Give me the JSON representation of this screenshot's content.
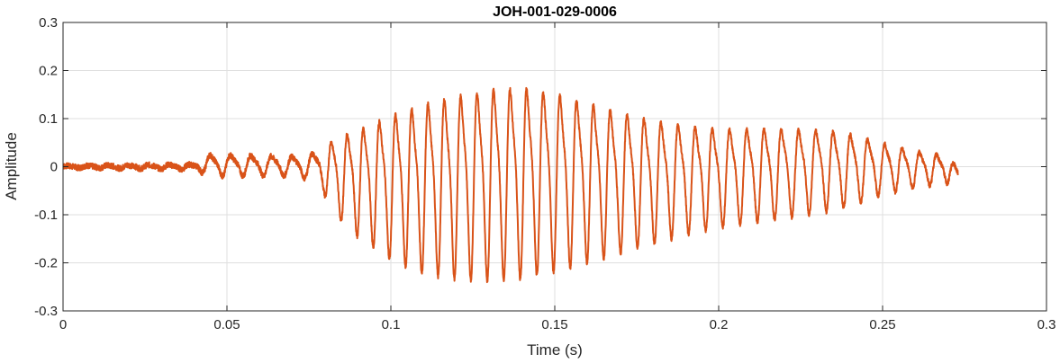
{
  "chart_data": {
    "type": "line",
    "title": "JOH-001-029-0006",
    "xlabel": "Time (s)",
    "ylabel": "Amplitude",
    "xlim": [
      0,
      0.3
    ],
    "ylim": [
      -0.3,
      0.3
    ],
    "grid": true,
    "legend": "none",
    "x_ticks": [
      0,
      0.05,
      0.1,
      0.15,
      0.2,
      0.25,
      0.3
    ],
    "x_tick_labels": [
      "0",
      "0.05",
      "0.1",
      "0.15",
      "0.2",
      "0.25",
      "0.3"
    ],
    "y_ticks": [
      -0.3,
      -0.2,
      -0.1,
      0,
      0.1,
      0.2,
      0.3
    ],
    "y_tick_labels": [
      "-0.3",
      "-0.2",
      "-0.1",
      "0",
      "0.1",
      "0.2",
      "0.3"
    ],
    "series": [
      {
        "color": "#d95319",
        "x": [
          0,
          0.04,
          0.045,
          0.07,
          0.078,
          0.081,
          0.082,
          0.085,
          0.09,
          0.1,
          0.11,
          0.12,
          0.13,
          0.14,
          0.15,
          0.16,
          0.17,
          0.18,
          0.19,
          0.2,
          0.21,
          0.22,
          0.23,
          0.24,
          0.25,
          0.26,
          0.27,
          0.273
        ],
        "upper": [
          0.002,
          0.006,
          0.03,
          0.025,
          0.035,
          0.06,
          0.07,
          0.085,
          0.1,
          0.14,
          0.17,
          0.19,
          0.205,
          0.21,
          0.195,
          0.17,
          0.145,
          0.125,
          0.11,
          0.1,
          0.1,
          0.098,
          0.095,
          0.085,
          0.06,
          0.04,
          0.028,
          0.0
        ],
        "lower": [
          -0.002,
          -0.006,
          -0.02,
          -0.02,
          -0.03,
          -0.08,
          -0.09,
          -0.12,
          -0.15,
          -0.2,
          -0.23,
          -0.24,
          -0.245,
          -0.24,
          -0.225,
          -0.205,
          -0.185,
          -0.165,
          -0.145,
          -0.13,
          -0.12,
          -0.11,
          -0.1,
          -0.085,
          -0.06,
          -0.045,
          -0.035,
          -0.04
        ]
      }
    ]
  }
}
